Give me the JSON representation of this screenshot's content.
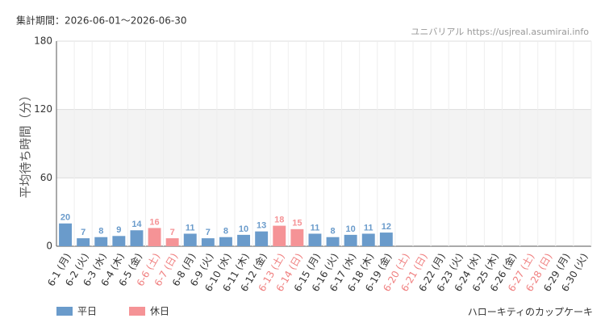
{
  "chart_data": {
    "type": "bar",
    "title": "集計期間：2026-06-01～2026-06-30",
    "source": "ユニバリアル https://usjreal.asumirai.info",
    "subject": "ハローキティのカップケーキ",
    "y_label": "平均待ち時間（分）",
    "categories": [
      "6-1 (月)",
      "6-2 (火)",
      "6-3 (水)",
      "6-4 (木)",
      "6-5 (金)",
      "6-6 (土)",
      "6-7 (日)",
      "6-8 (月)",
      "6-9 (火)",
      "6-10 (水)",
      "6-11 (木)",
      "6-12 (金)",
      "6-13 (土)",
      "6-14 (日)",
      "6-15 (月)",
      "6-16 (火)",
      "6-17 (水)",
      "6-18 (木)",
      "6-19 (金)",
      "6-20 (土)",
      "6-21 (日)",
      "6-22 (月)",
      "6-23 (火)",
      "6-24 (水)",
      "6-25 (木)",
      "6-26 (金)",
      "6-27 (土)",
      "6-28 (日)",
      "6-29 (月)",
      "6-30 (火)"
    ],
    "category_colors": [
      "#333",
      "#333",
      "#333",
      "#333",
      "#333",
      "#f08080",
      "#f08080",
      "#333",
      "#333",
      "#333",
      "#333",
      "#333",
      "#f08080",
      "#f08080",
      "#333",
      "#333",
      "#333",
      "#333",
      "#333",
      "#f08080",
      "#f08080",
      "#333",
      "#333",
      "#333",
      "#333",
      "#333",
      "#f08080",
      "#f08080",
      "#333",
      "#333"
    ],
    "series": [
      {
        "name": "平日",
        "color": "#6a9bcb",
        "values": [
          20,
          7,
          8,
          9,
          14,
          null,
          null,
          11,
          7,
          8,
          10,
          13,
          null,
          null,
          11,
          8,
          10,
          11,
          12,
          null,
          null,
          null,
          null,
          null,
          null,
          null,
          null,
          null,
          null,
          null
        ]
      },
      {
        "name": "休日",
        "color": "#f59396",
        "values": [
          null,
          null,
          null,
          null,
          null,
          16,
          7,
          null,
          null,
          null,
          null,
          null,
          18,
          15,
          null,
          null,
          null,
          null,
          null,
          null,
          null,
          null,
          null,
          null,
          null,
          null,
          null,
          null,
          null,
          null
        ]
      }
    ],
    "ylim": [
      0,
      180
    ],
    "yticks": [
      0,
      60,
      120,
      180
    ],
    "grid": true
  }
}
